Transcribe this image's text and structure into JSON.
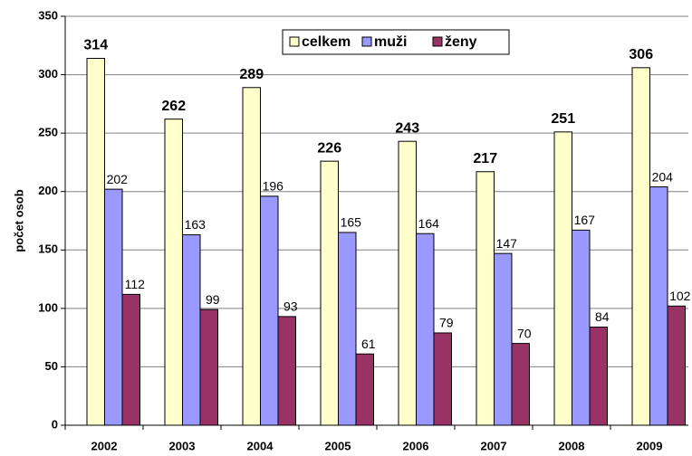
{
  "chart_data": {
    "type": "bar",
    "ylabel": "počet osob",
    "categories": [
      "2002",
      "2003",
      "2004",
      "2005",
      "2006",
      "2007",
      "2008",
      "2009"
    ],
    "series": [
      {
        "name": "celkem",
        "color": "#ffffcc",
        "values": [
          314,
          262,
          289,
          226,
          243,
          217,
          251,
          306
        ]
      },
      {
        "name": "muži",
        "color": "#9999ff",
        "values": [
          202,
          163,
          196,
          165,
          164,
          147,
          167,
          204
        ]
      },
      {
        "name": "ženy",
        "color": "#993366",
        "values": [
          112,
          99,
          93,
          61,
          79,
          70,
          84,
          102
        ]
      }
    ],
    "ylim": [
      0,
      350
    ],
    "yticks": [
      0,
      50,
      100,
      150,
      200,
      250,
      300,
      350
    ],
    "grid": true,
    "legend": "top"
  }
}
